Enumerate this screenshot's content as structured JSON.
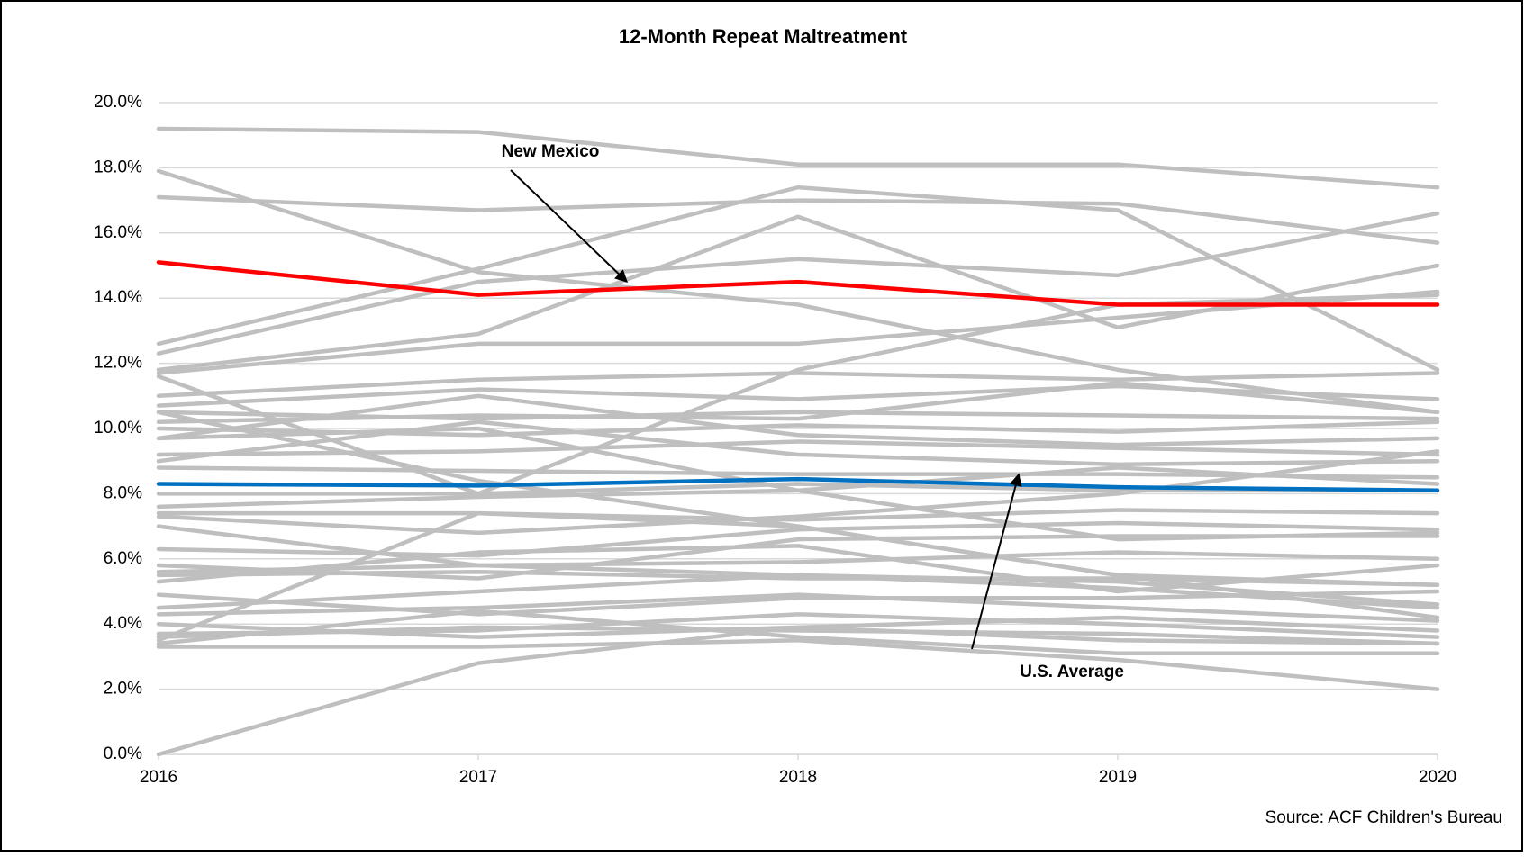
{
  "chart_data": {
    "type": "line",
    "title": "12-Month Repeat Maltreatment",
    "source": "Source: ACF Children's Bureau",
    "x": [
      2016,
      2017,
      2018,
      2019,
      2020
    ],
    "xlim": [
      2016,
      2020
    ],
    "xticks": [
      2016,
      2017,
      2018,
      2019,
      2020
    ],
    "ylim": [
      0,
      20
    ],
    "yticks": [
      {
        "value": 0,
        "label": "0.0%"
      },
      {
        "value": 2,
        "label": "2.0%"
      },
      {
        "value": 4,
        "label": "4.0%"
      },
      {
        "value": 6,
        "label": "6.0%"
      },
      {
        "value": 8,
        "label": "8.0%"
      },
      {
        "value": 10,
        "label": "10.0%"
      },
      {
        "value": 12,
        "label": "12.0%"
      },
      {
        "value": 14,
        "label": "14.0%"
      },
      {
        "value": 16,
        "label": "16.0%"
      },
      {
        "value": 18,
        "label": "18.0%"
      },
      {
        "value": 20,
        "label": "20.0%"
      }
    ],
    "grid": true,
    "annotations": [
      {
        "text": "New Mexico"
      },
      {
        "text": "U.S. Average"
      }
    ],
    "series": [
      {
        "color": "#bfbfbf",
        "values": [
          19.2,
          19.1,
          18.1,
          18.1,
          17.4
        ]
      },
      {
        "color": "#bfbfbf",
        "values": [
          17.1,
          16.7,
          17.0,
          16.9,
          15.7
        ]
      },
      {
        "color": "#bfbfbf",
        "values": [
          17.9,
          14.8,
          13.8,
          11.8,
          10.5
        ]
      },
      {
        "color": "#bfbfbf",
        "values": [
          12.6,
          14.9,
          17.4,
          16.7,
          11.8
        ]
      },
      {
        "color": "#bfbfbf",
        "values": [
          12.3,
          14.5,
          15.2,
          14.7,
          16.6
        ]
      },
      {
        "color": "#bfbfbf",
        "values": [
          11.8,
          12.9,
          16.5,
          13.1,
          15.0
        ]
      },
      {
        "color": "#bfbfbf",
        "values": [
          11.7,
          12.6,
          12.6,
          13.4,
          14.2
        ]
      },
      {
        "color": "#bfbfbf",
        "values": [
          11.6,
          8.0,
          11.8,
          13.8,
          14.1
        ]
      },
      {
        "color": "#bfbfbf",
        "values": [
          11.0,
          11.5,
          11.7,
          11.5,
          11.7
        ]
      },
      {
        "color": "#bfbfbf",
        "values": [
          10.7,
          11.2,
          10.9,
          11.3,
          10.9
        ]
      },
      {
        "color": "#bfbfbf",
        "values": [
          10.5,
          10.3,
          10.5,
          10.4,
          10.3
        ]
      },
      {
        "color": "#bfbfbf",
        "values": [
          10.2,
          10.4,
          10.3,
          11.4,
          10.5
        ]
      },
      {
        "color": "#bfbfbf",
        "values": [
          10.0,
          9.8,
          10.1,
          9.9,
          10.2
        ]
      },
      {
        "color": "#bfbfbf",
        "values": [
          9.7,
          11.0,
          9.8,
          9.5,
          9.7
        ]
      },
      {
        "color": "#bfbfbf",
        "values": [
          9.2,
          9.3,
          9.6,
          9.4,
          9.2
        ]
      },
      {
        "color": "#bfbfbf",
        "values": [
          9.0,
          10.2,
          9.2,
          8.9,
          9.0
        ]
      },
      {
        "color": "#bfbfbf",
        "values": [
          8.8,
          8.7,
          8.6,
          8.6,
          8.5
        ]
      },
      {
        "color": "#bfbfbf",
        "values": [
          8.0,
          8.0,
          8.3,
          8.1,
          8.1
        ]
      },
      {
        "color": "#bfbfbf",
        "values": [
          7.6,
          7.9,
          8.1,
          8.8,
          8.3
        ]
      },
      {
        "color": "#bfbfbf",
        "values": [
          7.4,
          7.4,
          7.2,
          7.5,
          7.4
        ]
      },
      {
        "color": "#bfbfbf",
        "values": [
          7.3,
          6.8,
          7.3,
          8.0,
          9.3
        ]
      },
      {
        "color": "#bfbfbf",
        "values": [
          7.0,
          5.8,
          5.5,
          5.3,
          4.6
        ]
      },
      {
        "color": "#bfbfbf",
        "values": [
          6.3,
          6.1,
          6.9,
          7.1,
          6.9
        ]
      },
      {
        "color": "#bfbfbf",
        "values": [
          5.8,
          5.4,
          6.6,
          6.7,
          6.7
        ]
      },
      {
        "color": "#bfbfbf",
        "values": [
          5.6,
          5.8,
          5.9,
          6.2,
          6.0
        ]
      },
      {
        "color": "#bfbfbf",
        "values": [
          5.3,
          6.2,
          6.4,
          5.0,
          5.8
        ]
      },
      {
        "color": "#bfbfbf",
        "values": [
          5.5,
          5.6,
          5.4,
          5.4,
          5.2
        ]
      },
      {
        "color": "#bfbfbf",
        "values": [
          4.9,
          4.3,
          4.8,
          4.8,
          5.0
        ]
      },
      {
        "color": "#bfbfbf",
        "values": [
          4.5,
          5.0,
          5.5,
          5.1,
          4.5
        ]
      },
      {
        "color": "#bfbfbf",
        "values": [
          4.3,
          4.5,
          4.9,
          4.5,
          4.1
        ]
      },
      {
        "color": "#bfbfbf",
        "values": [
          4.0,
          3.6,
          3.9,
          4.2,
          3.8
        ]
      },
      {
        "color": "#bfbfbf",
        "values": [
          3.7,
          3.8,
          4.3,
          4.0,
          3.6
        ]
      },
      {
        "color": "#bfbfbf",
        "values": [
          3.6,
          3.9,
          3.8,
          3.7,
          3.4
        ]
      },
      {
        "color": "#bfbfbf",
        "values": [
          3.4,
          4.4,
          3.6,
          3.1,
          3.1
        ]
      },
      {
        "color": "#bfbfbf",
        "values": [
          3.3,
          3.3,
          3.5,
          2.9,
          2.0
        ]
      },
      {
        "color": "#bfbfbf",
        "values": [
          0.0,
          2.8,
          3.9,
          3.5,
          3.4
        ]
      },
      {
        "color": "#bfbfbf",
        "values": [
          3.5,
          7.4,
          7.0,
          5.5,
          4.2
        ]
      },
      {
        "color": "#bfbfbf",
        "values": [
          10.5,
          8.4,
          7.0,
          5.5,
          5.2
        ]
      },
      {
        "color": "#bfbfbf",
        "values": [
          9.7,
          10.0,
          8.1,
          6.6,
          6.8
        ]
      },
      {
        "color": "#ff0000",
        "values": [
          15.1,
          14.1,
          14.5,
          13.8,
          13.8
        ]
      },
      {
        "color": "#0070c0",
        "values": [
          8.3,
          8.25,
          8.45,
          8.2,
          8.1
        ]
      }
    ]
  }
}
